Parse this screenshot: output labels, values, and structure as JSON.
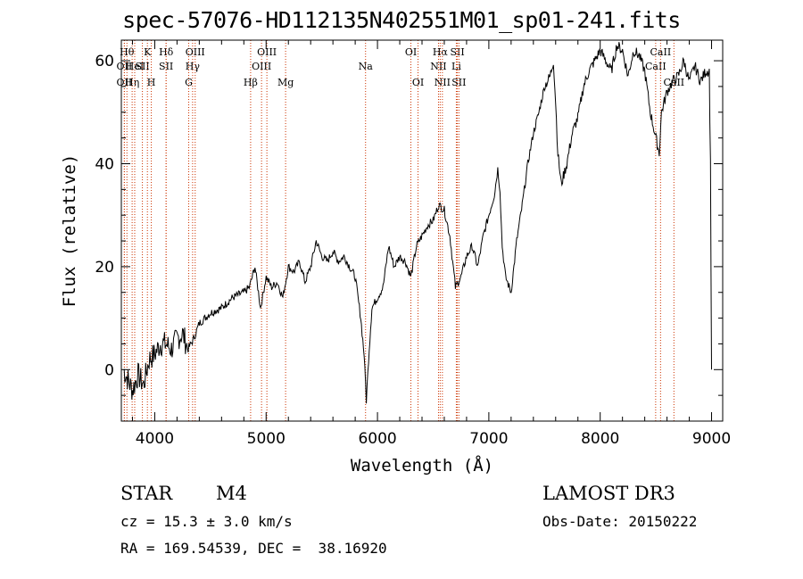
{
  "chart_data": {
    "type": "line",
    "title": "spec-57076-HD112135N402551M01_sp01-241.fits",
    "xlabel": "Wavelength (Å)",
    "ylabel": "Flux (relative)",
    "xlim": [
      3700,
      9100
    ],
    "ylim": [
      -10,
      64
    ],
    "xticks": [
      4000,
      5000,
      6000,
      7000,
      8000,
      9000
    ],
    "yticks": [
      0,
      20,
      40,
      60
    ],
    "series": [
      {
        "name": "flux",
        "x": [
          3720,
          3760,
          3800,
          3850,
          3900,
          3950,
          4000,
          4050,
          4100,
          4150,
          4200,
          4250,
          4300,
          4350,
          4400,
          4450,
          4500,
          4600,
          4700,
          4800,
          4850,
          4900,
          4950,
          5000,
          5050,
          5100,
          5150,
          5200,
          5250,
          5300,
          5350,
          5400,
          5450,
          5500,
          5550,
          5600,
          5650,
          5700,
          5750,
          5800,
          5850,
          5880,
          5900,
          5920,
          5950,
          6000,
          6050,
          6100,
          6150,
          6200,
          6250,
          6300,
          6350,
          6400,
          6450,
          6500,
          6550,
          6600,
          6650,
          6700,
          6750,
          6800,
          6850,
          6900,
          6950,
          7000,
          7050,
          7080,
          7100,
          7120,
          7150,
          7200,
          7250,
          7300,
          7350,
          7400,
          7450,
          7500,
          7550,
          7580,
          7600,
          7620,
          7650,
          7700,
          7750,
          7800,
          7850,
          7900,
          7950,
          8000,
          8050,
          8100,
          8150,
          8200,
          8250,
          8300,
          8350,
          8400,
          8450,
          8500,
          8530,
          8550,
          8600,
          8650,
          8700,
          8750,
          8800,
          8850,
          8900,
          8950,
          8980,
          8990,
          9000
        ],
        "values": [
          0,
          -2,
          -4,
          -1,
          -3,
          2,
          3,
          5,
          5,
          4,
          6,
          7,
          4,
          6,
          9,
          10,
          11,
          12,
          14,
          15,
          16,
          20,
          12,
          18,
          16,
          17,
          14,
          20,
          19,
          21,
          17,
          20,
          25,
          22,
          21,
          23,
          21,
          22,
          20,
          18,
          10,
          3,
          -6,
          2,
          12,
          14,
          16,
          24,
          20,
          22,
          21,
          18,
          24,
          26,
          28,
          29,
          32,
          31,
          26,
          16,
          18,
          22,
          24,
          20,
          26,
          30,
          34,
          39,
          35,
          24,
          18,
          15,
          25,
          32,
          40,
          46,
          50,
          55,
          57,
          60,
          52,
          42,
          36,
          40,
          46,
          49,
          55,
          58,
          60,
          62,
          60,
          58,
          63,
          62,
          57,
          62,
          61,
          58,
          50,
          45,
          42,
          50,
          54,
          56,
          57,
          60,
          56,
          59,
          56,
          58,
          58,
          40,
          0
        ]
      }
    ],
    "lines": [
      {
        "w": 3750,
        "tag": "Hθ",
        "row": 1
      },
      {
        "w": 3727,
        "tag": "OII",
        "row": 2
      },
      {
        "w": 3727,
        "tag": "OII",
        "row": 3
      },
      {
        "w": 3797,
        "tag": "Hη",
        "row": 3
      },
      {
        "w": 3820,
        "tag": "HeI",
        "row": 2
      },
      {
        "w": 3889,
        "tag": "SII",
        "row": 2
      },
      {
        "w": 3934,
        "tag": "K",
        "row": 1
      },
      {
        "w": 3969,
        "tag": "H",
        "row": 3
      },
      {
        "w": 4102,
        "tag": "Hδ",
        "row": 1
      },
      {
        "w": 4102,
        "tag": "SII",
        "row": 2
      },
      {
        "w": 4305,
        "tag": "G",
        "row": 3
      },
      {
        "w": 4340,
        "tag": "Hγ",
        "row": 2
      },
      {
        "w": 4363,
        "tag": "OIII",
        "row": 1
      },
      {
        "w": 4861,
        "tag": "Hβ",
        "row": 3
      },
      {
        "w": 4959,
        "tag": "OIII",
        "row": 2
      },
      {
        "w": 5007,
        "tag": "OIII",
        "row": 1
      },
      {
        "w": 5175,
        "tag": "Mg",
        "row": 3
      },
      {
        "w": 5893,
        "tag": "Na",
        "row": 2
      },
      {
        "w": 6300,
        "tag": "OI",
        "row": 1
      },
      {
        "w": 6364,
        "tag": "OI",
        "row": 3
      },
      {
        "w": 6548,
        "tag": "NII",
        "row": 2
      },
      {
        "w": 6563,
        "tag": "Hα",
        "row": 1
      },
      {
        "w": 6583,
        "tag": "NII",
        "row": 3
      },
      {
        "w": 6708,
        "tag": "Li",
        "row": 2
      },
      {
        "w": 6717,
        "tag": "SII",
        "row": 1
      },
      {
        "w": 6731,
        "tag": "SII",
        "row": 3
      },
      {
        "w": 8498,
        "tag": "CaII",
        "row": 2
      },
      {
        "w": 8542,
        "tag": "CaII",
        "row": 1
      },
      {
        "w": 8662,
        "tag": "CaII",
        "row": 3
      }
    ]
  },
  "info": {
    "class": "STAR",
    "subclass": "M4",
    "survey": "LAMOST DR3",
    "cz": "cz = 15.3 ± 3.0 km/s",
    "obs_date": "Obs-Date: 20150222",
    "radec": "RA = 169.54539, DEC =  38.16920"
  },
  "colors": {
    "spectrum": "#000000",
    "line_marker": "#cc3300",
    "axes": "#000000",
    "background": "#ffffff"
  }
}
